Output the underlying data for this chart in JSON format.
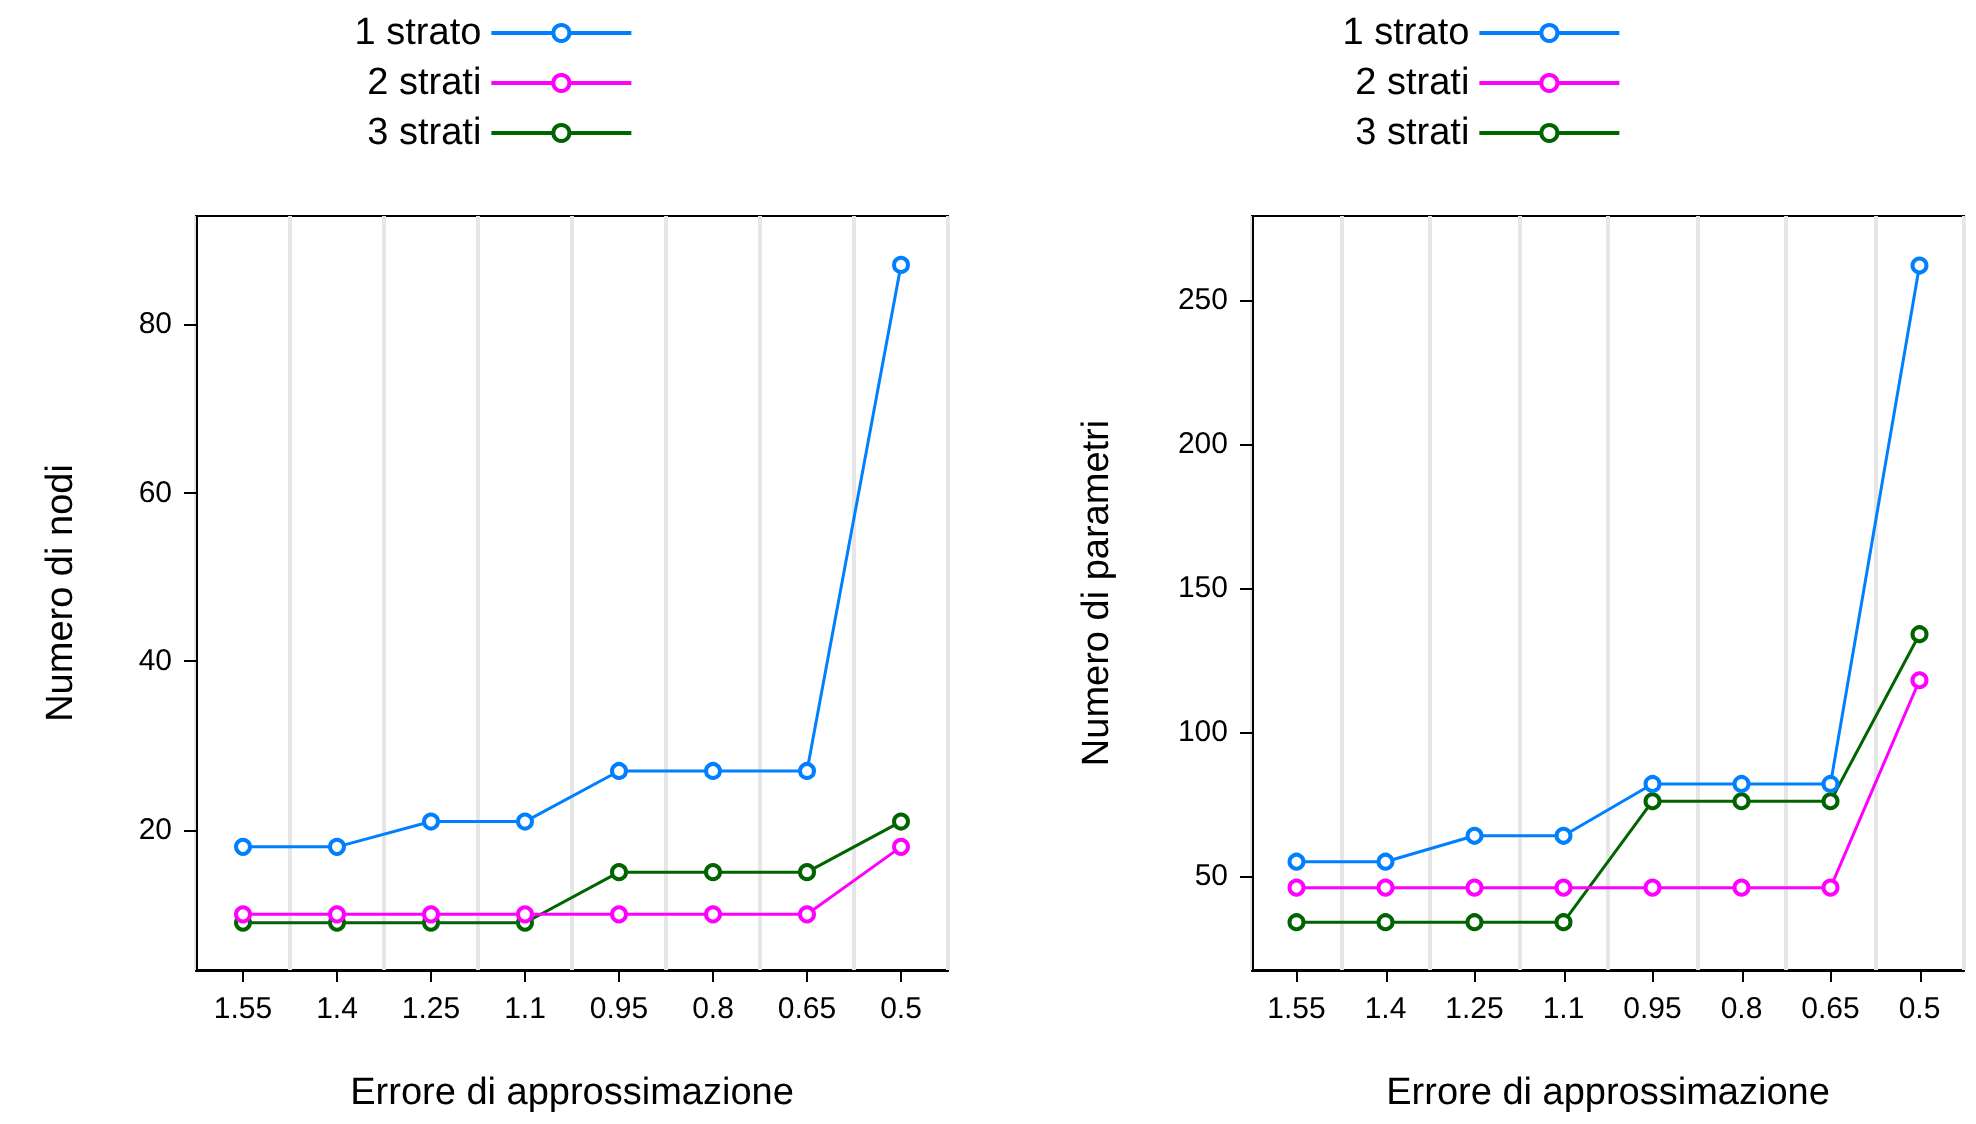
{
  "chart_data": [
    {
      "type": "line",
      "xlabel": "Errore di approssimazione",
      "ylabel": "Numero di nodi",
      "categories": [
        "1.55",
        "1.4",
        "1.25",
        "1.1",
        "0.95",
        "0.8",
        "0.65",
        "0.5"
      ],
      "series": [
        {
          "name": "1 strato",
          "color": "#0080ff",
          "values": [
            18,
            18,
            21,
            21,
            27,
            27,
            27,
            87
          ]
        },
        {
          "name": "2 strati",
          "color": "#ff00ff",
          "values": [
            10,
            10,
            10,
            10,
            10,
            10,
            10,
            18
          ]
        },
        {
          "name": "3 strati",
          "color": "#006400",
          "values": [
            9,
            9,
            9,
            9,
            15,
            15,
            15,
            21
          ]
        }
      ],
      "ylim": [
        3.4,
        92.8
      ],
      "yticks": [
        20,
        40,
        60,
        80
      ],
      "grid": "x",
      "legend": "top",
      "marker": "circle",
      "line_style": "solid"
    },
    {
      "type": "line",
      "xlabel": "Errore di approssimazione",
      "ylabel": "Numero di parametri",
      "categories": [
        "1.55",
        "1.4",
        "1.25",
        "1.1",
        "0.95",
        "0.8",
        "0.65",
        "0.5"
      ],
      "series": [
        {
          "name": "1 strato",
          "color": "#0080ff",
          "values": [
            55,
            55,
            64,
            64,
            82,
            82,
            82,
            262
          ]
        },
        {
          "name": "2 strati",
          "color": "#ff00ff",
          "values": [
            46,
            46,
            46,
            46,
            46,
            46,
            46,
            118
          ]
        },
        {
          "name": "3 strati",
          "color": "#006400",
          "values": [
            34,
            34,
            34,
            34,
            76,
            76,
            76,
            134
          ]
        }
      ],
      "ylim": [
        17.4,
        279.2
      ],
      "yticks": [
        50,
        100,
        150,
        200,
        250
      ],
      "grid": "x",
      "legend": "top",
      "marker": "circle",
      "line_style": "solid"
    }
  ]
}
